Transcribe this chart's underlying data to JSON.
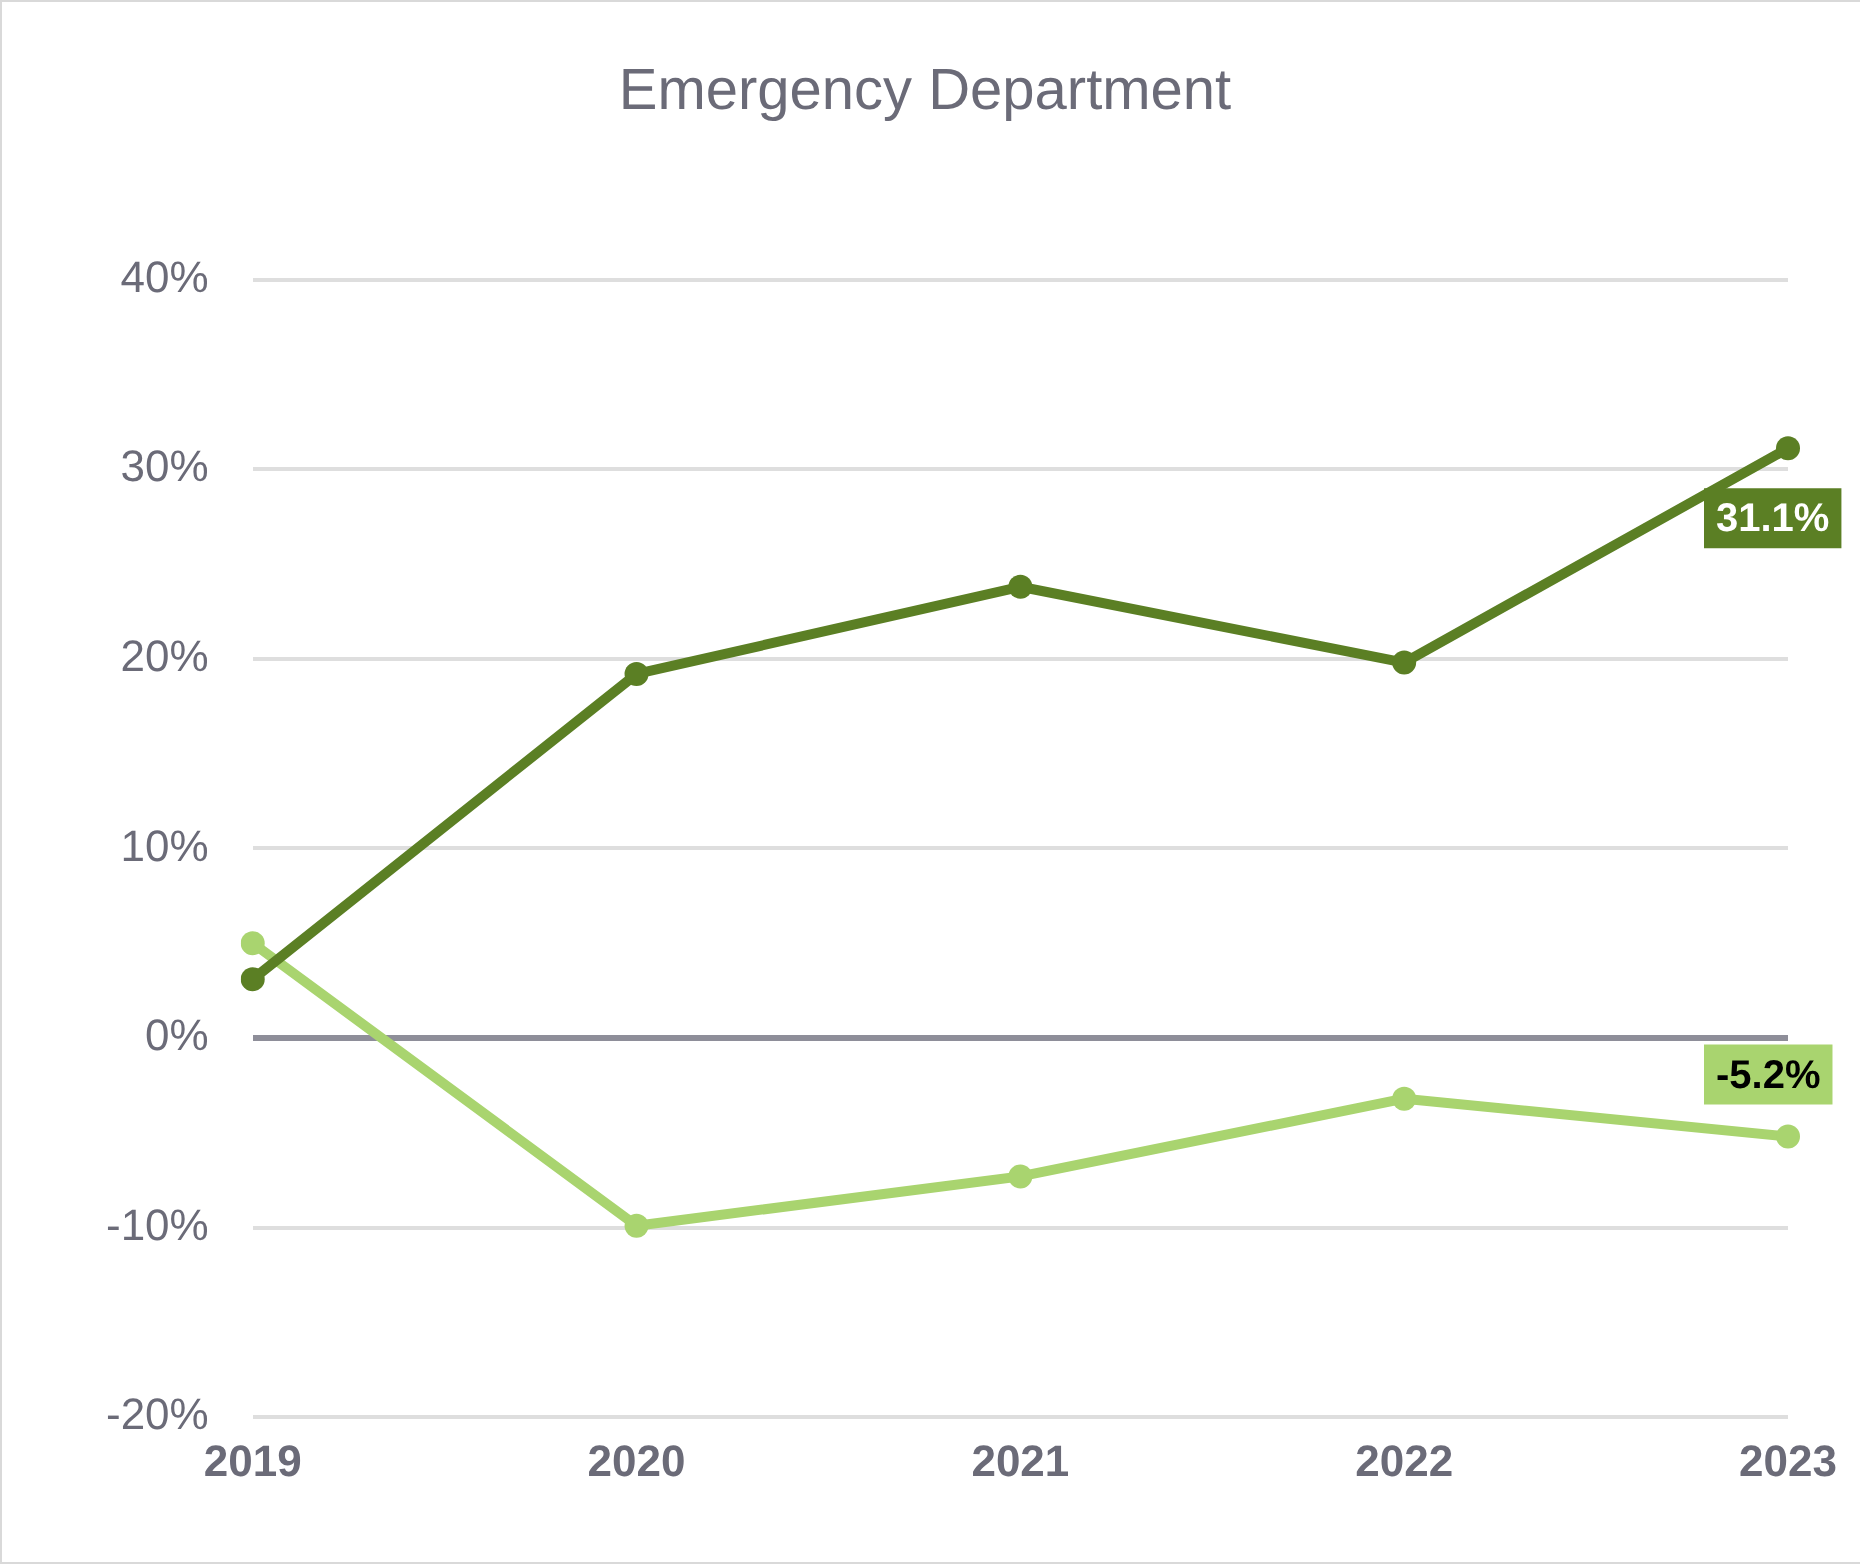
{
  "chart_data": {
    "type": "line",
    "title": "Emergency Department",
    "categories": [
      "2019",
      "2020",
      "2021",
      "2022",
      "2023"
    ],
    "series": [
      {
        "color": "#5b7f24",
        "values": [
          3.1,
          19.2,
          23.8,
          19.8,
          31.1
        ],
        "value_labels": [
          null,
          null,
          null,
          null,
          "31.1%"
        ]
      },
      {
        "color": "#a9d46f",
        "values": [
          5.0,
          -9.9,
          -7.3,
          -3.2,
          -5.2
        ],
        "value_labels": [
          null,
          null,
          null,
          null,
          "-5.2%"
        ]
      }
    ],
    "ylim": [
      -20,
      40
    ],
    "yticks": [
      {
        "value": -20,
        "label": "-20%"
      },
      {
        "value": -10,
        "label": "-10%"
      },
      {
        "value": 0,
        "label": "0%"
      },
      {
        "value": 10,
        "label": "10%"
      },
      {
        "value": 20,
        "label": "20%"
      },
      {
        "value": 30,
        "label": "30%"
      },
      {
        "value": 40,
        "label": "40%"
      }
    ],
    "grid": "y",
    "legend": false,
    "marker": "circle",
    "line_style": "solid"
  }
}
